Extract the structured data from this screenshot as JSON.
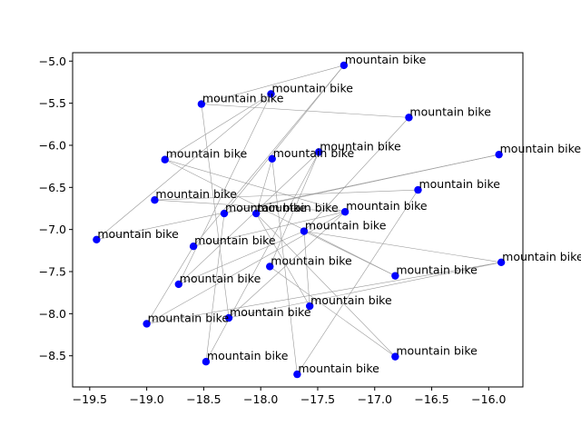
{
  "chart_data": {
    "type": "scatter",
    "title": "",
    "xlabel": "",
    "ylabel": "",
    "xlim": [
      -19.65,
      -15.7
    ],
    "ylim": [
      -8.87,
      -4.9
    ],
    "xticks": [
      -19.5,
      -19.0,
      -18.5,
      -18.0,
      -17.5,
      -17.0,
      -16.5,
      -16.0
    ],
    "xtick_labels": [
      "−19.5",
      "−19.0",
      "−18.5",
      "−18.0",
      "−17.5",
      "−17.0",
      "−16.5",
      "−16.0"
    ],
    "yticks": [
      -5.0,
      -5.5,
      -6.0,
      -6.5,
      -7.0,
      -7.5,
      -8.0,
      -8.5
    ],
    "ytick_labels": [
      "−5.0",
      "−5.5",
      "−6.0",
      "−6.5",
      "−7.0",
      "−7.5",
      "−8.0",
      "−8.5"
    ],
    "grid": false,
    "marker_color": "#0000ff",
    "edge_color": "#9a9a9a",
    "points": [
      {
        "x": -17.27,
        "y": -5.05,
        "label": "mountain bike"
      },
      {
        "x": -17.91,
        "y": -5.39,
        "label": "mountain bike"
      },
      {
        "x": -18.52,
        "y": -5.51,
        "label": "mountain bike"
      },
      {
        "x": -16.7,
        "y": -5.67,
        "label": "mountain bike"
      },
      {
        "x": -17.49,
        "y": -6.08,
        "label": "mountain bike"
      },
      {
        "x": -15.91,
        "y": -6.11,
        "label": "mountain bike"
      },
      {
        "x": -18.84,
        "y": -6.17,
        "label": "mountain bike"
      },
      {
        "x": -17.9,
        "y": -6.16,
        "label": "mountain bike"
      },
      {
        "x": -16.62,
        "y": -6.53,
        "label": "mountain bike"
      },
      {
        "x": -18.93,
        "y": -6.65,
        "label": "mountain bike"
      },
      {
        "x": -18.32,
        "y": -6.81,
        "label": "mountain bike"
      },
      {
        "x": -18.04,
        "y": -6.81,
        "label": "mountain bike"
      },
      {
        "x": -17.26,
        "y": -6.79,
        "label": "mountain bike"
      },
      {
        "x": -17.62,
        "y": -7.02,
        "label": "mountain bike"
      },
      {
        "x": -19.44,
        "y": -7.12,
        "label": "mountain bike"
      },
      {
        "x": -18.59,
        "y": -7.2,
        "label": "mountain bike"
      },
      {
        "x": -15.89,
        "y": -7.39,
        "label": "mountain bike"
      },
      {
        "x": -17.92,
        "y": -7.44,
        "label": "mountain bike"
      },
      {
        "x": -16.82,
        "y": -7.55,
        "label": "mountain bike"
      },
      {
        "x": -18.72,
        "y": -7.65,
        "label": "mountain bike"
      },
      {
        "x": -17.57,
        "y": -7.91,
        "label": "mountain bike"
      },
      {
        "x": -18.28,
        "y": -8.05,
        "label": "mountain bike"
      },
      {
        "x": -19.0,
        "y": -8.12,
        "label": "mountain bike"
      },
      {
        "x": -16.82,
        "y": -8.51,
        "label": "mountain bike"
      },
      {
        "x": -18.48,
        "y": -8.57,
        "label": "mountain bike"
      },
      {
        "x": -17.68,
        "y": -8.72,
        "label": "mountain bike"
      }
    ],
    "edges": [
      [
        0,
        2
      ],
      [
        0,
        15
      ],
      [
        0,
        10
      ],
      [
        1,
        6
      ],
      [
        1,
        14
      ],
      [
        1,
        19
      ],
      [
        2,
        3
      ],
      [
        2,
        21
      ],
      [
        3,
        13
      ],
      [
        4,
        17
      ],
      [
        4,
        24
      ],
      [
        4,
        19
      ],
      [
        5,
        10
      ],
      [
        5,
        14
      ],
      [
        6,
        18
      ],
      [
        6,
        12
      ],
      [
        7,
        11
      ],
      [
        7,
        25
      ],
      [
        8,
        9
      ],
      [
        8,
        25
      ],
      [
        9,
        12
      ],
      [
        10,
        24
      ],
      [
        11,
        20
      ],
      [
        11,
        23
      ],
      [
        12,
        15
      ],
      [
        12,
        22
      ],
      [
        12,
        21
      ],
      [
        13,
        18
      ],
      [
        15,
        22
      ],
      [
        16,
        21
      ],
      [
        16,
        13
      ],
      [
        17,
        23
      ],
      [
        19,
        13
      ],
      [
        20,
        13
      ],
      [
        22,
        16
      ]
    ]
  }
}
